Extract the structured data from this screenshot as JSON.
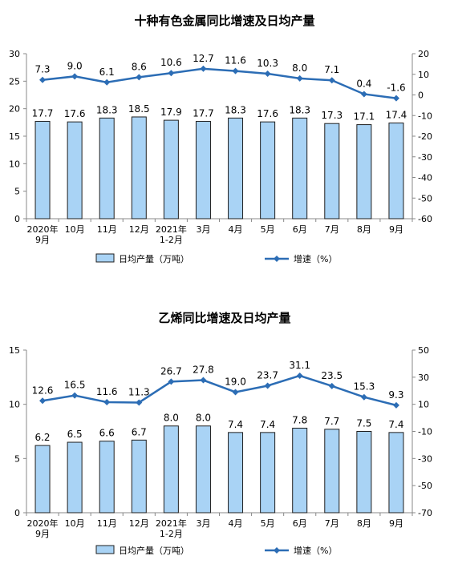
{
  "chart_data": [
    {
      "type": "bar",
      "title": "十种有色金属同比增速及日均产量",
      "categories": [
        "2020年\n9月",
        "10月",
        "11月",
        "12月",
        "2021年\n1-2月",
        "3月",
        "4月",
        "5月",
        "6月",
        "7月",
        "8月",
        "9月"
      ],
      "series": [
        {
          "name": "日均产量（万吨）",
          "type": "bar",
          "axis": "left",
          "values": [
            17.7,
            17.6,
            18.3,
            18.5,
            17.9,
            17.7,
            18.3,
            17.6,
            18.3,
            17.3,
            17.1,
            17.4
          ]
        },
        {
          "name": "增速（%）",
          "type": "line",
          "axis": "right",
          "values": [
            7.3,
            9.0,
            6.1,
            8.6,
            10.6,
            12.7,
            11.6,
            10.3,
            8.0,
            7.1,
            0.4,
            -1.6
          ]
        }
      ],
      "bar_labels": [
        "17.7",
        "17.6",
        "18.3",
        "18.5",
        "17.9",
        "17.7",
        "18.3",
        "17.6",
        "18.3",
        "17.3",
        "17.1",
        "17.4"
      ],
      "line_labels": [
        "7.3",
        "9.0",
        "6.1",
        "8.6",
        "10.6",
        "12.7",
        "11.6",
        "10.3",
        "8.0",
        "7.1",
        "0.4",
        "-1.6"
      ],
      "ylim_left": [
        0,
        30
      ],
      "yticks_left": [
        0,
        5,
        10,
        15,
        20,
        25,
        30
      ],
      "ylim_right": [
        -60,
        20
      ],
      "yticks_right": [
        -60,
        -50,
        -40,
        -30,
        -20,
        -10,
        0,
        10,
        20
      ],
      "legend_position": "bottom",
      "colors": {
        "bar_fill": "#a9d3f5",
        "bar_stroke": "#1f1f1f",
        "line": "#2c6db5"
      }
    },
    {
      "type": "bar",
      "title": "乙烯同比增速及日均产量",
      "categories": [
        "2020年\n9月",
        "10月",
        "11月",
        "12月",
        "2021年\n1-2月",
        "3月",
        "4月",
        "5月",
        "6月",
        "7月",
        "8月",
        "9月"
      ],
      "series": [
        {
          "name": "日均产量（万吨）",
          "type": "bar",
          "axis": "left",
          "values": [
            6.2,
            6.5,
            6.6,
            6.7,
            8.0,
            8.0,
            7.4,
            7.4,
            7.8,
            7.7,
            7.5,
            7.4
          ]
        },
        {
          "name": "增速（%）",
          "type": "line",
          "axis": "right",
          "values": [
            12.6,
            16.5,
            11.6,
            11.3,
            26.7,
            27.8,
            19.0,
            23.7,
            31.1,
            23.5,
            15.3,
            9.3
          ]
        }
      ],
      "bar_labels": [
        "6.2",
        "6.5",
        "6.6",
        "6.7",
        "8.0",
        "8.0",
        "7.4",
        "7.4",
        "7.8",
        "7.7",
        "7.5",
        "7.4"
      ],
      "line_labels": [
        "12.6",
        "16.5",
        "11.6",
        "11.3",
        "26.7",
        "27.8",
        "19.0",
        "23.7",
        "31.1",
        "23.5",
        "15.3",
        "9.3"
      ],
      "ylim_left": [
        0,
        15
      ],
      "yticks_left": [
        0,
        5,
        10,
        15
      ],
      "ylim_right": [
        -70,
        50
      ],
      "yticks_right": [
        -70,
        -50,
        -30,
        -10,
        10,
        30,
        50
      ],
      "legend_position": "bottom",
      "colors": {
        "bar_fill": "#a9d3f5",
        "bar_stroke": "#1f1f1f",
        "line": "#2c6db5"
      }
    }
  ]
}
